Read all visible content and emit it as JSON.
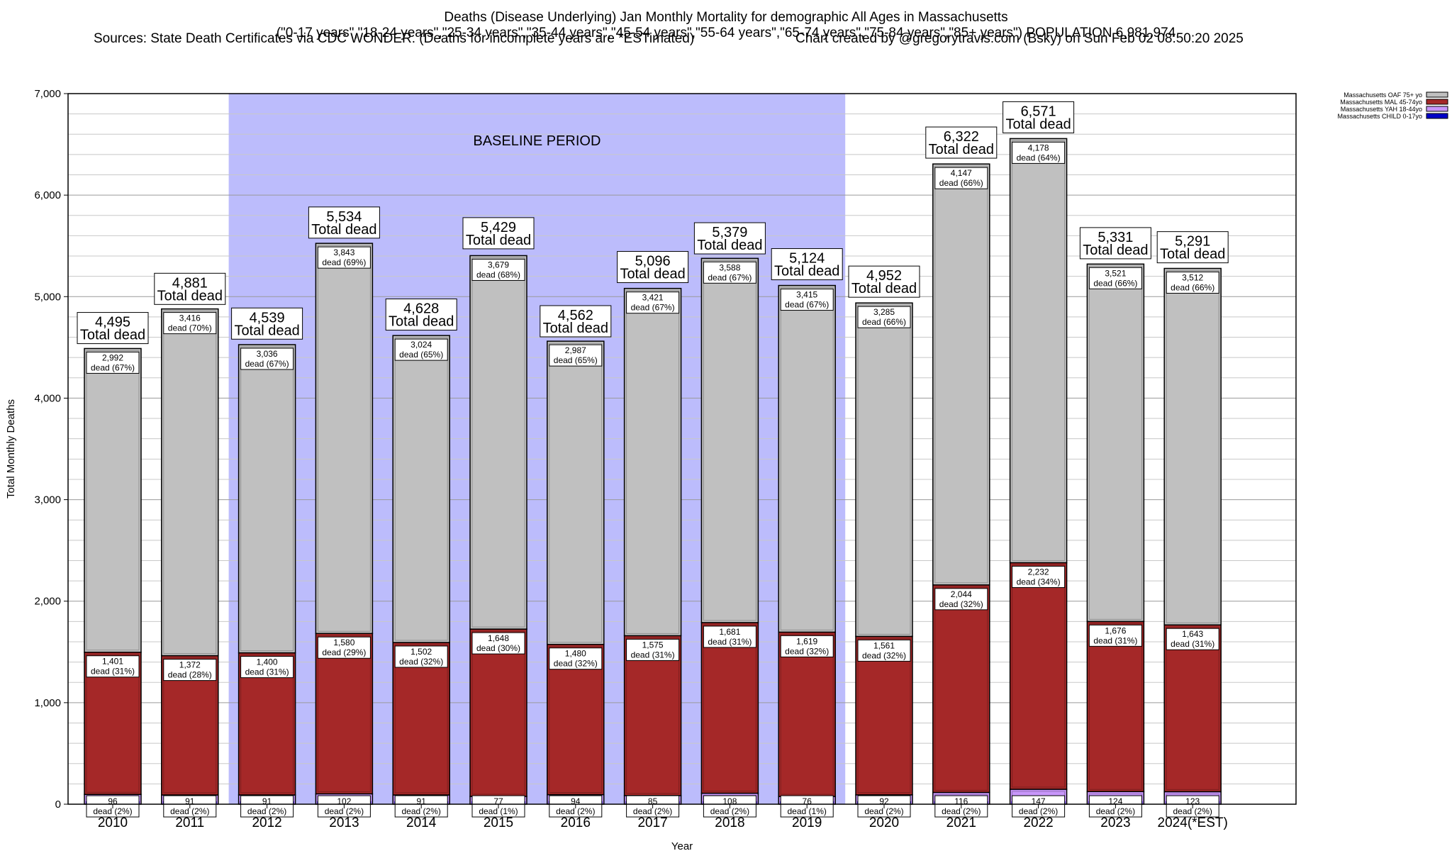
{
  "header": {
    "title": "Deaths (Disease Underlying) Jan Monthly Mortality for demographic All Ages in Massachusetts",
    "subtitle": "(\"0-17 years\",\"18-24 years\",\"25-34 years\",\"35-44 years\",\"45-54 years\",\"55-64 years\",\"65-74 years\",\"75-84 years\",\"85+ years\") POPULATION 6,981,974",
    "sources": "Sources: State Death Certificates via CDC WONDER. (Deaths for incomplete years are *ESTimated)",
    "credit": "Chart created by @gregorytravis.com (Bsky) on Sun Feb 02 08:50:20 2025"
  },
  "chart_data": {
    "type": "bar",
    "stacked": true,
    "xlabel": "Year",
    "ylabel": "Total Monthly Deaths",
    "ylim": [
      0,
      7000
    ],
    "yticks": [
      0,
      1000,
      2000,
      3000,
      4000,
      5000,
      6000,
      7000
    ],
    "ytick_labels": [
      "0",
      "1,000",
      "2,000",
      "3,000",
      "4,000",
      "5,000",
      "6,000",
      "7,000"
    ],
    "categories": [
      "2010",
      "2011",
      "2012",
      "2013",
      "2014",
      "2015",
      "2016",
      "2017",
      "2018",
      "2019",
      "2020",
      "2021",
      "2022",
      "2023",
      "2024(*EST)"
    ],
    "baseline": {
      "label": "BASELINE PERIOD",
      "from": "2012",
      "to": "2019",
      "color": "#bcbcfc"
    },
    "total_label_word": "Total dead",
    "segment_label_word": "dead",
    "series": [
      {
        "name": "Massachusetts CHILD 0-17yo",
        "color": "#0000c8",
        "values": [
          9,
          9,
          9,
          9,
          9,
          9,
          9,
          9,
          9,
          9,
          9,
          9,
          9,
          9,
          9
        ],
        "labels": []
      },
      {
        "name": "Massachusetts YAH 18-44yo",
        "color": "#c896fa",
        "values": [
          96,
          91,
          91,
          102,
          91,
          77,
          94,
          85,
          108,
          76,
          92,
          116,
          147,
          124,
          123
        ],
        "pct": [
          2,
          2,
          2,
          2,
          2,
          1,
          2,
          2,
          2,
          1,
          2,
          2,
          2,
          2,
          2
        ]
      },
      {
        "name": "Massachusetts MAL 45-74yo",
        "color": "#a52828",
        "values": [
          1401,
          1372,
          1400,
          1580,
          1502,
          1648,
          1480,
          1575,
          1681,
          1619,
          1561,
          2044,
          2232,
          1676,
          1643
        ],
        "pct": [
          31,
          28,
          31,
          29,
          32,
          30,
          32,
          31,
          31,
          32,
          32,
          32,
          34,
          31,
          31
        ]
      },
      {
        "name": "Massachusetts OAF 75+ yo",
        "color": "#c0c0c0",
        "values": [
          2992,
          3416,
          3036,
          3843,
          3024,
          3679,
          2987,
          3421,
          3588,
          3415,
          3285,
          4147,
          4178,
          3521,
          3512
        ],
        "pct": [
          67,
          70,
          67,
          69,
          65,
          68,
          65,
          67,
          67,
          67,
          66,
          66,
          64,
          66,
          66
        ]
      }
    ],
    "totals": [
      4495,
      4881,
      4539,
      5534,
      4628,
      5429,
      4562,
      5096,
      5379,
      5124,
      4952,
      6322,
      6571,
      5331,
      5291
    ],
    "legend_placement": "top-right",
    "grid": true
  }
}
